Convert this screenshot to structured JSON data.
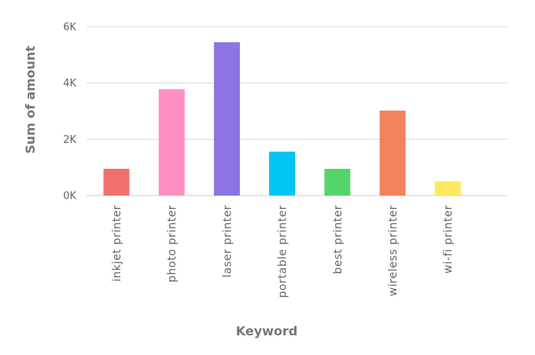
{
  "chart_data": {
    "type": "bar",
    "xlabel": "Keyword",
    "ylabel": "Sum of amount",
    "ylim": [
      0,
      6000
    ],
    "yticks": [
      {
        "value": 0,
        "label": "0K"
      },
      {
        "value": 2000,
        "label": "2K"
      },
      {
        "value": 4000,
        "label": "4K"
      },
      {
        "value": 6000,
        "label": "6K"
      }
    ],
    "grid": true,
    "legend": "none",
    "categories": [
      "inkjet printer",
      "photo printer",
      "laser printer",
      "portable printer",
      "best printer",
      "wireless printer",
      "wi-fi printer"
    ],
    "values": [
      950,
      3780,
      5450,
      1560,
      950,
      3020,
      510
    ],
    "colors": [
      "#f2706c",
      "#fe8fc1",
      "#8c74e3",
      "#00c4f4",
      "#55d46a",
      "#f4815d",
      "#fde95c"
    ]
  }
}
